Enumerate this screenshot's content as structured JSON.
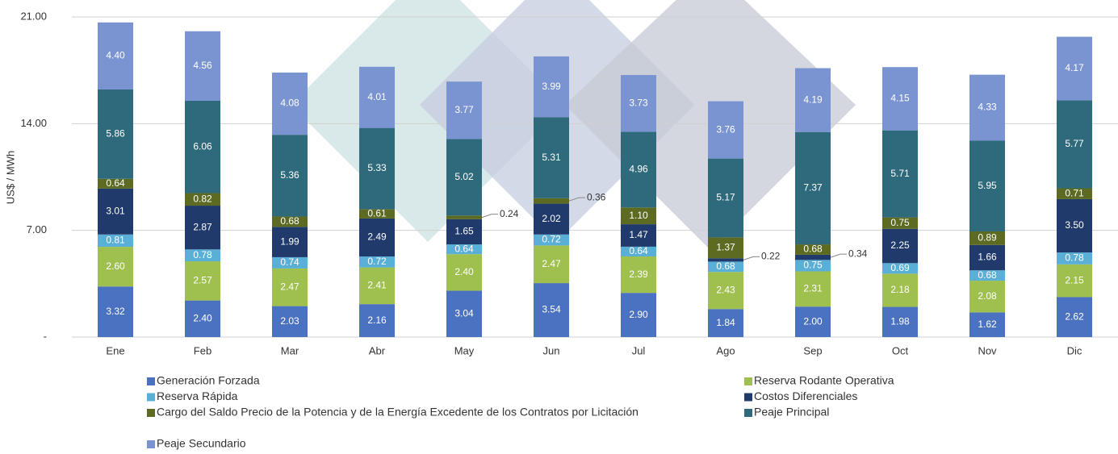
{
  "chart_data": {
    "type": "stacked_bar",
    "y_label": "US$ / MWh",
    "categories": [
      "Ene",
      "Feb",
      "Mar",
      "Abr",
      "May",
      "Jun",
      "Jul",
      "Ago",
      "Sep",
      "Oct",
      "Nov",
      "Dic"
    ],
    "ylim": [
      0,
      21
    ],
    "yticks": [
      {
        "value": 0,
        "label": "-"
      },
      {
        "value": 7,
        "label": "7.00"
      },
      {
        "value": 14,
        "label": "14.00"
      },
      {
        "value": 21,
        "label": "21.00"
      }
    ],
    "grid": true,
    "series": [
      {
        "name": "Generación Forzada",
        "color": "#4a72c0",
        "values": [
          3.32,
          2.4,
          2.03,
          2.16,
          3.04,
          3.54,
          2.9,
          1.84,
          2.0,
          1.98,
          1.62,
          2.62
        ],
        "value_labels": [
          "3.32",
          "2.40",
          "2.03",
          "2.16",
          "3.04",
          "3.54",
          "2.90",
          "1.84",
          "2.00",
          "1.98",
          "1.62",
          "2.62"
        ]
      },
      {
        "name": "Reserva Rodante Operativa",
        "color": "#9fbf4f",
        "values": [
          2.6,
          2.57,
          2.47,
          2.41,
          2.4,
          2.47,
          2.39,
          2.43,
          2.31,
          2.18,
          2.08,
          2.15
        ],
        "value_labels": [
          "2.60",
          "2.57",
          "2.47",
          "2.41",
          "2.40",
          "2.47",
          "2.39",
          "2.43",
          "2.31",
          "2.18",
          "2.08",
          "2.15"
        ]
      },
      {
        "name": "Reserva Rápida",
        "color": "#5aafd6",
        "values": [
          0.81,
          0.78,
          0.74,
          0.72,
          0.64,
          0.72,
          0.64,
          0.68,
          0.75,
          0.69,
          0.68,
          0.78
        ],
        "value_labels": [
          "0.81",
          "0.78",
          "0.74",
          "0.72",
          "0.64",
          "0.72",
          "0.64",
          "0.68",
          "0.75",
          "0.69",
          "0.68",
          "0.78"
        ]
      },
      {
        "name": "Costos Diferenciales",
        "color": "#1f3a6b",
        "values": [
          3.01,
          2.87,
          1.99,
          2.49,
          1.65,
          2.02,
          1.47,
          0.22,
          0.34,
          2.25,
          1.66,
          3.5
        ],
        "value_labels": [
          "3.01",
          "2.87",
          "1.99",
          "2.49",
          "1.65",
          "2.02",
          "1.47",
          "0.22",
          "0.34",
          "2.25",
          "1.66",
          "3.50"
        ]
      },
      {
        "name": "Cargo del Saldo Precio de la Potencia y de la Energía Excedente de los Contratos por Licitación",
        "color": "#5c6a22",
        "values": [
          0.64,
          0.82,
          0.68,
          0.61,
          0.24,
          0.36,
          1.1,
          1.37,
          0.68,
          0.75,
          0.89,
          0.71
        ],
        "value_labels": [
          "0.64",
          "0.82",
          "0.68",
          "0.61",
          "0.24",
          "0.36",
          "1.10",
          "1.37",
          "0.68",
          "0.75",
          "0.89",
          "0.71"
        ]
      },
      {
        "name": "Peaje Principal",
        "color": "#2e6a7c",
        "values": [
          5.86,
          6.06,
          5.36,
          5.33,
          5.02,
          5.31,
          4.96,
          5.17,
          7.37,
          5.71,
          5.95,
          5.77
        ],
        "value_labels": [
          "5.86",
          "6.06",
          "5.36",
          "5.33",
          "5.02",
          "5.31",
          "4.96",
          "5.17",
          "7.37",
          "5.71",
          "5.95",
          "5.77"
        ]
      },
      {
        "name": "Peaje Secundario",
        "color": "#7a94d2",
        "values": [
          4.4,
          4.56,
          4.08,
          4.01,
          3.77,
          3.99,
          3.73,
          3.76,
          4.19,
          4.15,
          4.33,
          4.17
        ],
        "value_labels": [
          "4.40",
          "4.56",
          "4.08",
          "4.01",
          "3.77",
          "3.99",
          "3.73",
          "3.76",
          "4.19",
          "4.15",
          "4.33",
          "4.17"
        ]
      }
    ]
  }
}
